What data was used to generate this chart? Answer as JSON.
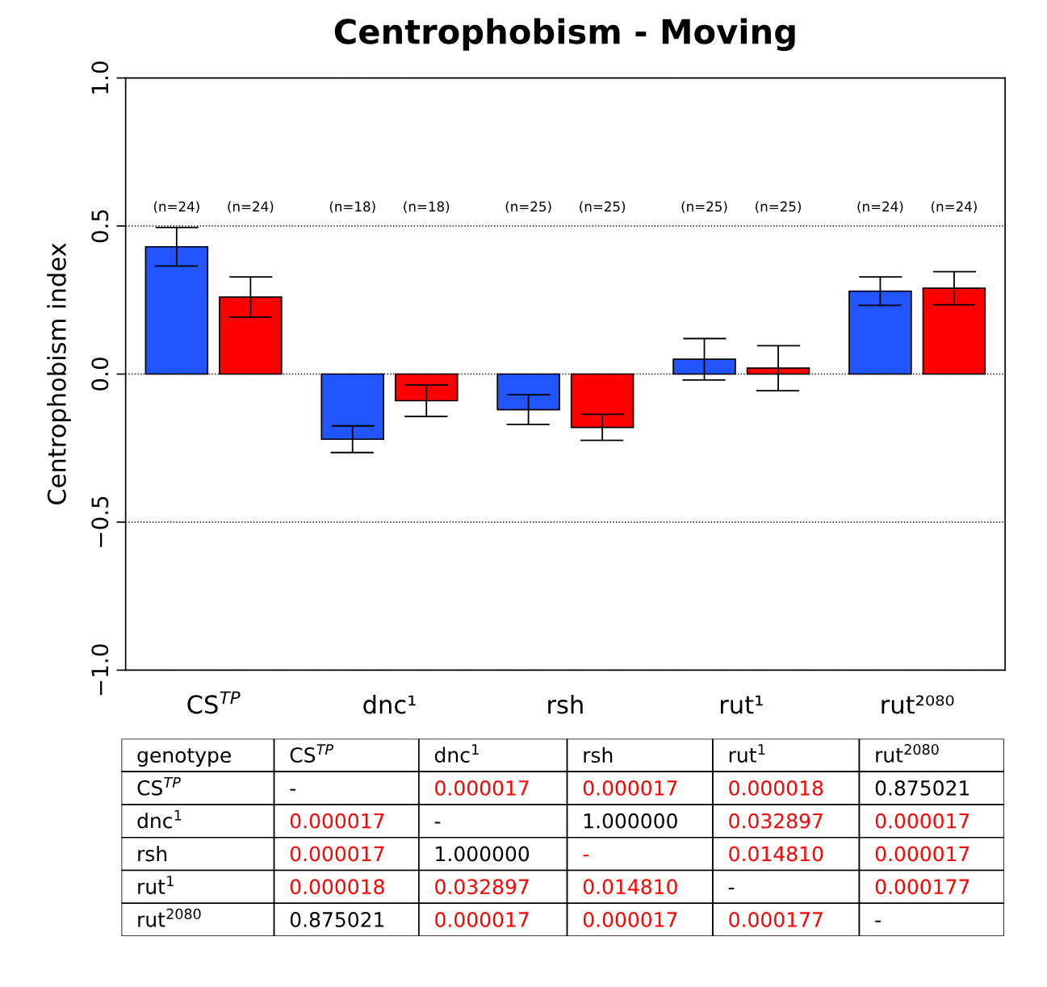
{
  "chart_data": [
    {
      "type": "bar",
      "title": "Centrophobism - Moving",
      "ylabel": "Centrophobism index",
      "categories": [
        "CS$^{TP}$",
        "dnc¹",
        "rsh",
        "rut¹",
        "rut²⁰⁸⁰"
      ],
      "series": [
        {
          "color": "#2255ff",
          "values": [
            0.43,
            -0.22,
            -0.12,
            0.05,
            0.28
          ],
          "errors": [
            0.065,
            0.045,
            0.05,
            0.07,
            0.048
          ]
        },
        {
          "color": "#ff0000",
          "values": [
            0.26,
            -0.09,
            -0.18,
            0.02,
            0.29
          ],
          "errors": [
            0.068,
            0.053,
            0.044,
            0.076,
            0.056
          ]
        }
      ],
      "annotations": [
        "(n=24)",
        "(n=24)",
        "(n=18)",
        "(n=18)",
        "(n=25)",
        "(n=25)",
        "(n=25)",
        "(n=25)",
        "(n=24)",
        "(n=24)"
      ],
      "ylim": [
        -1.0,
        1.0
      ],
      "yticks": [
        {
          "value": -1.0,
          "label": "−1.0"
        },
        {
          "value": -0.5,
          "label": "−0.5"
        },
        {
          "value": 0.0,
          "label": "0.0"
        },
        0.5,
        {
          "value": 1.0,
          "label": "1.0"
        }
      ],
      "grid": "y"
    },
    {
      "type": "other",
      "ylabel": "genotype",
      "categories": [
        "CS$^{TP}$",
        "dnc$^{1}$",
        "rsh",
        "rut$^{1}$",
        "rut$^{2080}$"
      ],
      "y_categories": [
        "CS$^{TP}$",
        "dnc$^{1}$",
        "rsh",
        "rut$^{1}$",
        "rut$^{2080}$"
      ],
      "cell_labels": [
        [
          "-",
          "0.000017",
          "0.000017",
          "0.000018",
          "0.875021"
        ],
        [
          "0.000017",
          "-",
          "1.000000",
          "0.032897",
          "0.000017"
        ],
        [
          "0.000017",
          "1.000000",
          "-",
          "0.014810",
          "0.000017"
        ],
        [
          "0.000018",
          "0.032897",
          "0.014810",
          "-",
          "0.000177"
        ],
        [
          "0.875021",
          "0.000017",
          "0.000017",
          "0.000177",
          "-"
        ]
      ],
      "colors": [
        [
          "#000000",
          "#ff0000",
          "#ff0000",
          "#ff0000",
          "#000000"
        ],
        [
          "#ff0000",
          "#000000",
          "#000000",
          "#ff0000",
          "#ff0000"
        ],
        [
          "#ff0000",
          "#000000",
          "#ff0000",
          "#ff0000",
          "#ff0000"
        ],
        [
          "#ff0000",
          "#ff0000",
          "#ff0000",
          "#000000",
          "#ff0000"
        ],
        [
          "#000000",
          "#ff0000",
          "#ff0000",
          "#ff0000",
          "#000000"
        ]
      ]
    }
  ]
}
